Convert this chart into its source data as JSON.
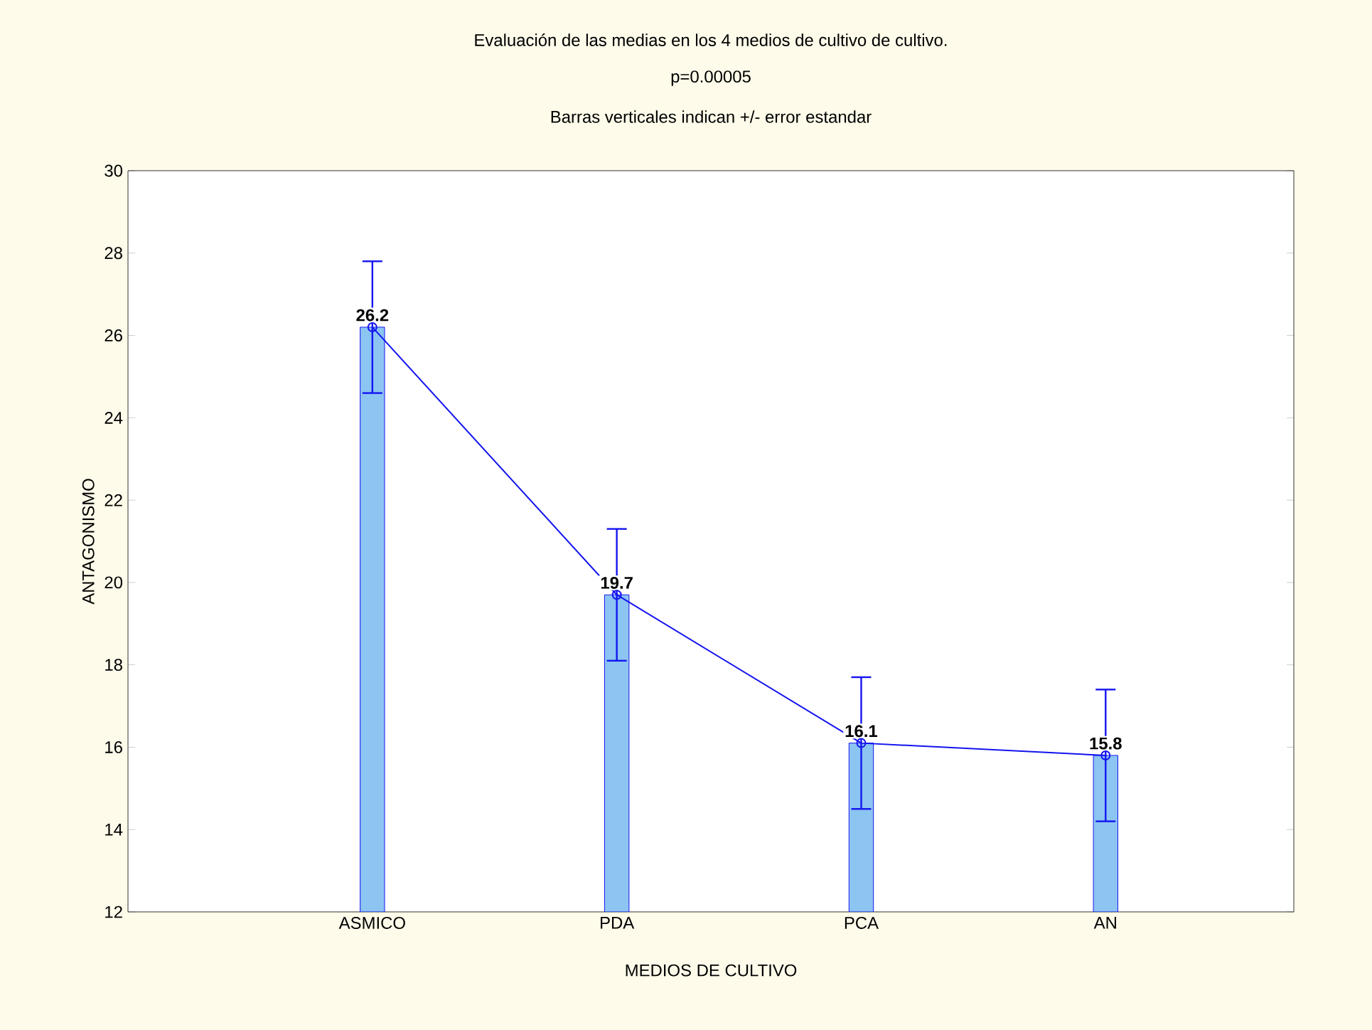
{
  "chart_data": {
    "type": "bar",
    "title": "Evaluación de las medias en los 4 medios de cultivo de cultivo.",
    "subtitle": "p=0.00005",
    "annotations": [
      "Barras verticales indican +/- error estandar"
    ],
    "xlabel": "MEDIOS DE CULTIVO",
    "ylabel": "ANTAGONISMO",
    "categories": [
      "ASMICO",
      "PDA",
      "PCA",
      "AN"
    ],
    "series": [
      {
        "color": "#8cc4f2",
        "values": [
          26.2,
          19.7,
          16.1,
          15.8
        ]
      },
      {
        "type": "line",
        "color": "#1414f0",
        "values": [
          26.2,
          19.7,
          16.1,
          15.8
        ],
        "errors": [
          1.6,
          1.6,
          1.6,
          1.6
        ],
        "marker": "circle",
        "value_labels": [
          "26.2",
          "19.7",
          "16.1",
          "15.8"
        ]
      }
    ],
    "grid": false,
    "ylim": [
      12,
      30
    ],
    "yticks": [
      12,
      14,
      16,
      18,
      20,
      22,
      24,
      26,
      28,
      30
    ]
  }
}
